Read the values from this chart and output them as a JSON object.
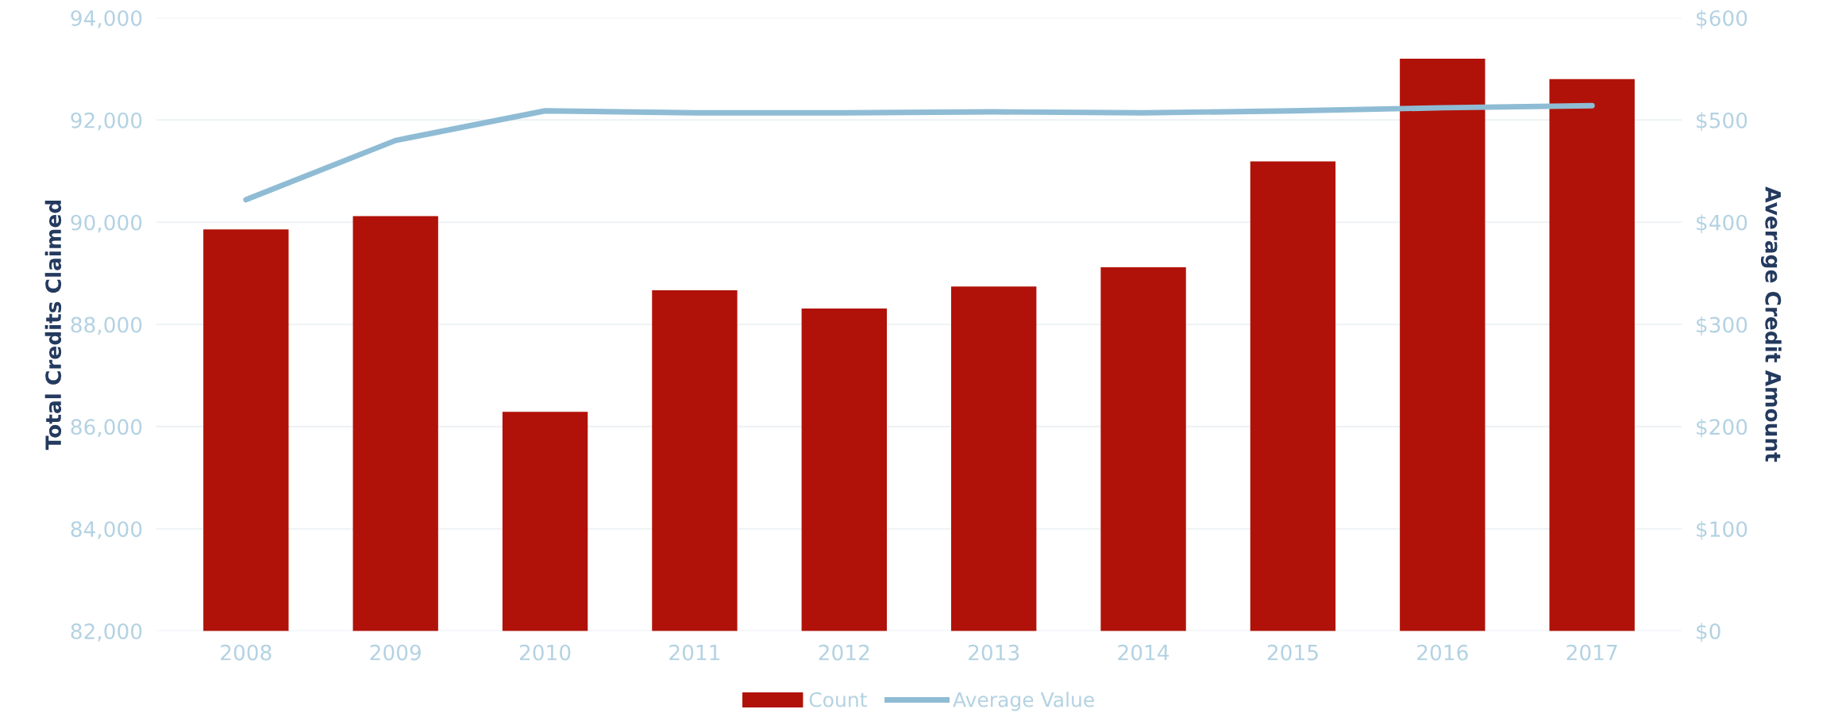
{
  "chart_data": {
    "type": "bar",
    "categories": [
      "2008",
      "2009",
      "2010",
      "2011",
      "2012",
      "2013",
      "2014",
      "2015",
      "2016",
      "2017"
    ],
    "series": [
      {
        "name": "Count",
        "color": "#b01209",
        "values": [
          89860,
          90120,
          86290,
          88670,
          88310,
          88740,
          89120,
          91190,
          93200,
          92800
        ]
      },
      {
        "name": "Average Value",
        "type": "line",
        "axis": "y2",
        "color": "#8fbcd4",
        "values": [
          422,
          480,
          509,
          507,
          507,
          508,
          507,
          509,
          512,
          514
        ]
      }
    ],
    "ylabel": "Total Credits Claimed",
    "y2label": "Average Credit Amount",
    "ylim": [
      82000,
      94000
    ],
    "yticks": [
      {
        "value": 82000,
        "label": "82,000"
      },
      {
        "value": 84000,
        "label": "84,000"
      },
      {
        "value": 86000,
        "label": "86,000"
      },
      {
        "value": 88000,
        "label": "88,000"
      },
      {
        "value": 90000,
        "label": "90,000"
      },
      {
        "value": 92000,
        "label": "92,000"
      },
      {
        "value": 94000,
        "label": "94,000"
      }
    ],
    "y2lim": [
      0,
      600
    ],
    "y2ticks": [
      {
        "value": 0,
        "label": "$0"
      },
      {
        "value": 100,
        "label": "$100"
      },
      {
        "value": 200,
        "label": "$200"
      },
      {
        "value": 300,
        "label": "$300"
      },
      {
        "value": 400,
        "label": "$400"
      },
      {
        "value": 500,
        "label": "$500"
      },
      {
        "value": 600,
        "label": "$600"
      }
    ],
    "grid": "y",
    "legend": "bottom"
  }
}
